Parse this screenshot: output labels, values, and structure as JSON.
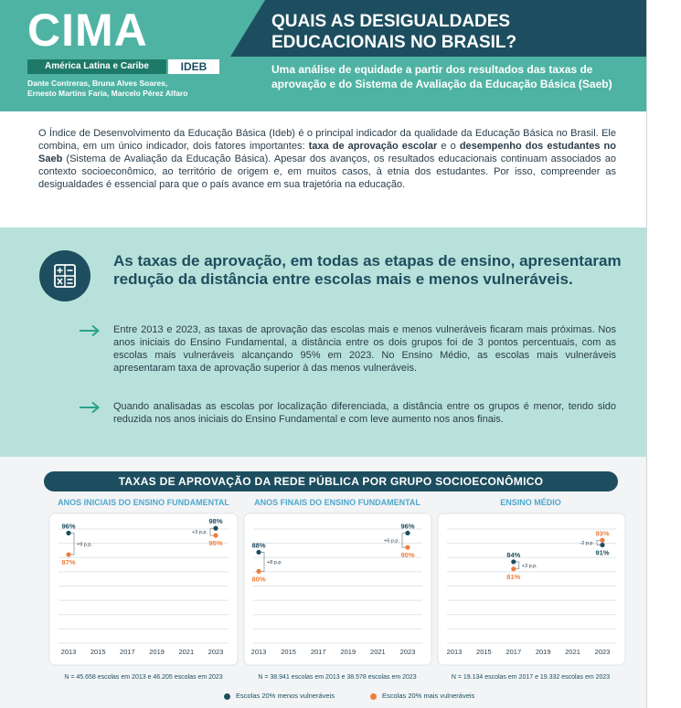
{
  "header": {
    "logo": "CIMA",
    "region": "América Latina e Caribe",
    "badge": "IDEB",
    "authors_line1": "Dante Contreras, Bruna Alves Soares,",
    "authors_line2": "Ernesto Martins Faria, Marcelo Pérez Alfaro",
    "title": "QUAIS AS DESIGUALDADES EDUCACIONAIS NO BRASIL?",
    "subtitle": "Uma análise de equidade a partir dos resultados das taxas de aprovação e do Sistema de Avaliação da Educação Básica (Saeb)"
  },
  "intro": {
    "t1": "O Índice de Desenvolvimento da Educação Básica (Ideb) é o principal indicador da qualidade da Educação Básica no Brasil. Ele combina, em um único indicador, dois fatores importantes: ",
    "b1": "taxa de aprovação escolar",
    "t2": " e o ",
    "b2": "desempenho dos estudantes no Saeb",
    "t3": " (Sistema de Avaliação da Educação Básica). Apesar dos avanços, os resultados educacionais continuam associados ao contexto socioeconômico, ao território de origem e, em muitos casos, à etnia dos estudantes. Por isso, compreender as desigualdades é essencial para que o país avance em sua trajetória na educação."
  },
  "highlight": {
    "icon": "calculator-icon",
    "title": "As taxas de aprovação, em todas as etapas de ensino, apresentaram redução da distância entre escolas mais e menos vulneráveis.",
    "bullets": [
      "Entre 2013 e 2023, as taxas de aprovação das escolas mais e menos vulneráveis ficaram mais próximas. Nos anos iniciais do Ensino Fundamental, a distância entre os dois grupos foi de 3 pontos percentuais, com as escolas mais vulneráveis alcançando 95% em 2023. No Ensino Médio, as escolas mais vulneráveis apresentaram taxa de aprovação superior à das menos vulneráveis.",
      "Quando analisadas as escolas por localização diferenciada, a distância entre os grupos é menor, tendo sido reduzida nos anos iniciais do Ensino Fundamental e com leve aumento nos anos finais."
    ]
  },
  "charts_section": {
    "title": "TAXAS DE APROVAÇÃO DA REDE PÚBLICA POR GRUPO SOCIOECONÔMICO",
    "legend_less": "Escolas 20% menos vulneráveis",
    "legend_more": "Escolas 20% mais vulneráveis",
    "color_less": "#1d4e5f",
    "color_more": "#ef7d3c"
  },
  "chart_data": [
    {
      "type": "scatter",
      "title": "ANOS INICIAIS DO ENSINO FUNDAMENTAL",
      "x_ticks": [
        "2013",
        "2015",
        "2017",
        "2019",
        "2021",
        "2023"
      ],
      "series": [
        {
          "name": "Escolas 20% menos vulneráveis",
          "points": [
            {
              "x": 2013,
              "y": 96
            },
            {
              "x": 2023,
              "y": 98
            }
          ]
        },
        {
          "name": "Escolas 20% mais vulneráveis",
          "points": [
            {
              "x": 2013,
              "y": 87
            },
            {
              "x": 2023,
              "y": 95
            }
          ]
        }
      ],
      "value_labels": {
        "less": [
          "96%",
          "98%"
        ],
        "more": [
          "87%",
          "95%"
        ]
      },
      "gaps": [
        "+9 p.p.",
        "+3 p.p."
      ],
      "note": "N = 45.658 escolas em 2013 e 46.205 escolas em 2023"
    },
    {
      "type": "scatter",
      "title": "ANOS FINAIS DO ENSINO FUNDAMENTAL",
      "x_ticks": [
        "2013",
        "2015",
        "2017",
        "2019",
        "2021",
        "2023"
      ],
      "series": [
        {
          "name": "Escolas 20% menos vulneráveis",
          "points": [
            {
              "x": 2013,
              "y": 88
            },
            {
              "x": 2023,
              "y": 96
            }
          ]
        },
        {
          "name": "Escolas 20% mais vulneráveis",
          "points": [
            {
              "x": 2013,
              "y": 80
            },
            {
              "x": 2023,
              "y": 90
            }
          ]
        }
      ],
      "value_labels": {
        "less": [
          "88%",
          "96%"
        ],
        "more": [
          "80%",
          "90%"
        ]
      },
      "gaps": [
        "+8 p.p.",
        "+6 p.p."
      ],
      "note": "N = 38.941 escolas em 2013 e 38.578 escolas em 2023"
    },
    {
      "type": "scatter",
      "title": "ENSINO MÉDIO",
      "x_ticks": [
        "2013",
        "2015",
        "2017",
        "2019",
        "2021",
        "2023"
      ],
      "series": [
        {
          "name": "Escolas 20% menos vulneráveis",
          "points": [
            {
              "x": 2017,
              "y": 84
            },
            {
              "x": 2023,
              "y": 91
            }
          ]
        },
        {
          "name": "Escolas 20% mais vulneráveis",
          "points": [
            {
              "x": 2017,
              "y": 81
            },
            {
              "x": 2023,
              "y": 93
            }
          ]
        }
      ],
      "value_labels": {
        "less": [
          "84%",
          "91%"
        ],
        "more": [
          "81%",
          "93%"
        ]
      },
      "gaps": [
        "+3 p.p.",
        "-2 p.p."
      ],
      "note": "N = 19.134 escolas em 2017 e 19.332 escolas em 2023"
    }
  ]
}
